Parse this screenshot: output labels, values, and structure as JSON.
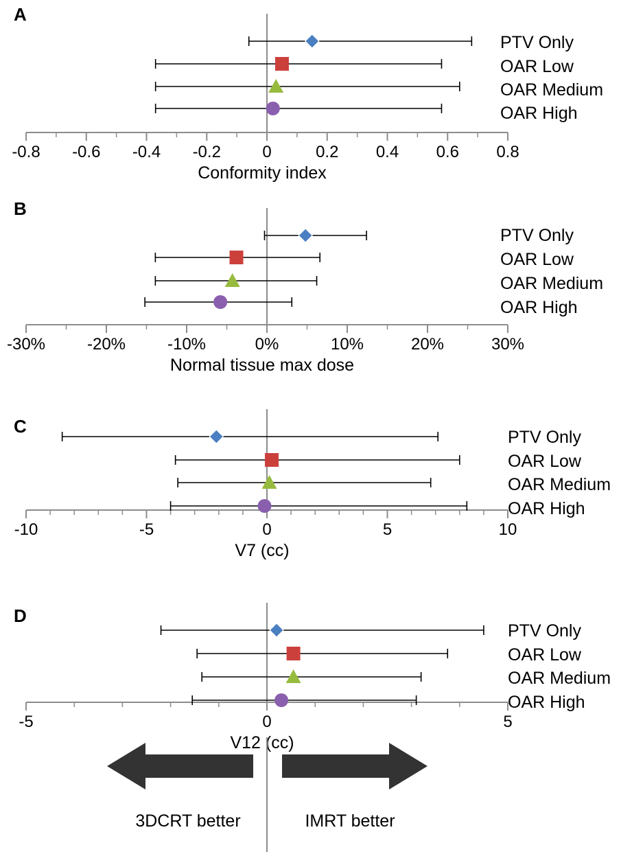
{
  "chart_data": [
    {
      "type": "scatter",
      "panel": "A",
      "xlabel": "Conformity index",
      "xlim": [
        -0.8,
        0.8
      ],
      "tick_labels": [
        "-0.8",
        "-0.6",
        "-0.4",
        "-0.2",
        "0",
        "0.2",
        "0.4",
        "0.6",
        "0.8"
      ],
      "series": [
        {
          "name": "PTV Only",
          "value": 0.15,
          "lower": -0.06,
          "upper": 0.68
        },
        {
          "name": "OAR Low",
          "value": 0.05,
          "lower": -0.37,
          "upper": 0.58
        },
        {
          "name": "OAR Medium",
          "value": 0.03,
          "lower": -0.37,
          "upper": 0.64
        },
        {
          "name": "OAR High",
          "value": 0.02,
          "lower": -0.37,
          "upper": 0.58
        }
      ]
    },
    {
      "type": "scatter",
      "panel": "B",
      "xlabel": "Normal tissue max dose",
      "xlim": [
        -30,
        30
      ],
      "tick_labels": [
        "-30%",
        "-20%",
        "-10%",
        "0%",
        "10%",
        "20%",
        "30%"
      ],
      "series": [
        {
          "name": "PTV Only",
          "value": 4.8,
          "lower": -0.3,
          "upper": 12.4
        },
        {
          "name": "OAR Low",
          "value": -3.8,
          "lower": -13.9,
          "upper": 6.6
        },
        {
          "name": "OAR Medium",
          "value": -4.3,
          "lower": -13.9,
          "upper": 6.2
        },
        {
          "name": "OAR High",
          "value": -5.8,
          "lower": -15.2,
          "upper": 3.1
        }
      ]
    },
    {
      "type": "scatter",
      "panel": "C",
      "xlabel": "V7 (cc)",
      "xlim": [
        -10,
        10
      ],
      "tick_labels": [
        "-10",
        "-5",
        "0",
        "5",
        "10"
      ],
      "series": [
        {
          "name": "PTV Only",
          "value": -2.1,
          "lower": -8.5,
          "upper": 7.1
        },
        {
          "name": "OAR Low",
          "value": 0.2,
          "lower": -3.8,
          "upper": 8.0
        },
        {
          "name": "OAR Medium",
          "value": 0.1,
          "lower": -3.7,
          "upper": 6.8
        },
        {
          "name": "OAR High",
          "value": -0.1,
          "lower": -4.0,
          "upper": 8.3
        }
      ]
    },
    {
      "type": "scatter",
      "panel": "D",
      "xlabel": "V12 (cc)",
      "xlim": [
        -5,
        5
      ],
      "tick_labels": [
        "-5",
        "0",
        "5"
      ],
      "series": [
        {
          "name": "PTV Only",
          "value": 0.2,
          "lower": -2.2,
          "upper": 4.5
        },
        {
          "name": "OAR Low",
          "value": 0.55,
          "lower": -1.45,
          "upper": 3.75
        },
        {
          "name": "OAR Medium",
          "value": 0.55,
          "lower": -1.35,
          "upper": 3.2
        },
        {
          "name": "OAR High",
          "value": 0.3,
          "lower": -1.55,
          "upper": 3.1
        }
      ]
    }
  ],
  "markers": {
    "PTV Only": {
      "shape": "diamond",
      "color": "#4a7fc1"
    },
    "OAR Low": {
      "shape": "square",
      "color": "#cc403c"
    },
    "OAR Medium": {
      "shape": "triangle",
      "color": "#97bb3e"
    },
    "OAR High": {
      "shape": "circle",
      "color": "#8a5fae"
    }
  },
  "footer": {
    "left_label": "3DCRT better",
    "right_label": "IMRT better"
  },
  "colors": {
    "axis": "#8c8c8c",
    "error_bar": "#000000",
    "arrow": "#333333"
  }
}
